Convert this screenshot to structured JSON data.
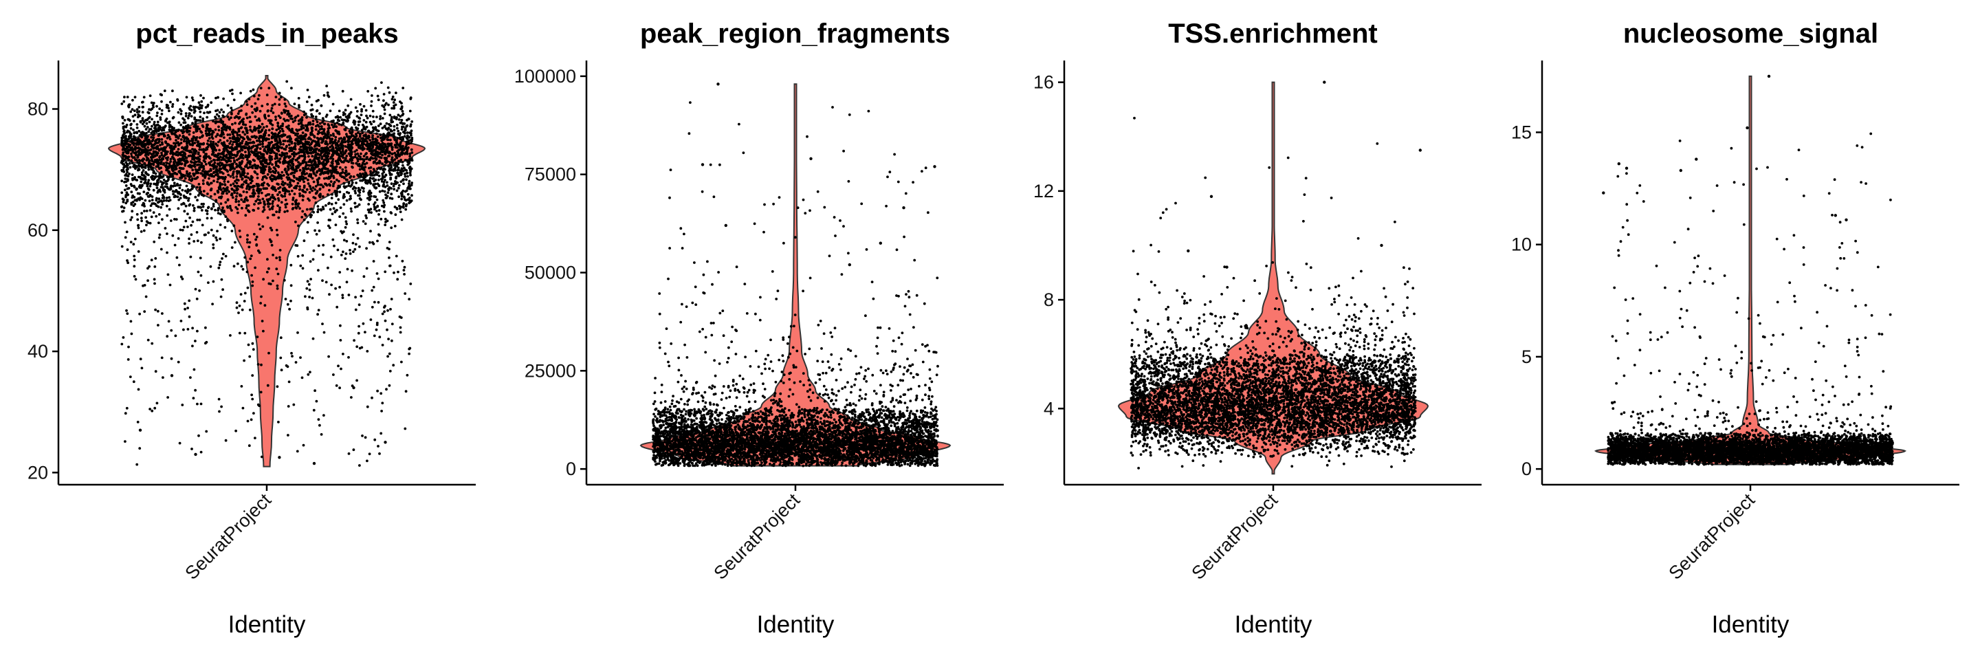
{
  "chart_data": [
    {
      "type": "violin",
      "title": "pct_reads_in_peaks",
      "xlabel": "Identity",
      "categories": [
        "SeuratProject"
      ],
      "ylim": [
        18,
        88
      ],
      "yticks": [
        20,
        40,
        60,
        80
      ],
      "ytick_labels": [
        "20",
        "40",
        "60",
        "80"
      ],
      "grid": false,
      "colors": {
        "fill": "#f8766d",
        "outline": "#333333",
        "points": "#000000"
      },
      "distribution": {
        "min": 21,
        "max": 85.5,
        "density": [
          [
            21,
            0.02
          ],
          [
            25,
            0.03
          ],
          [
            30,
            0.04
          ],
          [
            35,
            0.05
          ],
          [
            40,
            0.06
          ],
          [
            45,
            0.08
          ],
          [
            50,
            0.1
          ],
          [
            55,
            0.13
          ],
          [
            60,
            0.2
          ],
          [
            64,
            0.3
          ],
          [
            67,
            0.45
          ],
          [
            70,
            0.7
          ],
          [
            72,
            0.92
          ],
          [
            73.5,
            1.0
          ],
          [
            75,
            0.85
          ],
          [
            77,
            0.5
          ],
          [
            79,
            0.25
          ],
          [
            81,
            0.14
          ],
          [
            83,
            0.06
          ],
          [
            85.5,
            0.0
          ]
        ]
      },
      "points": {
        "n": 5000,
        "mode": 73,
        "spread": 4,
        "jitter": 1.0,
        "outliers": [
          [
            0.08,
            22.5
          ],
          [
            -0.45,
            23
          ],
          [
            0.3,
            21.5
          ],
          [
            -0.8,
            27
          ],
          [
            0.75,
            25
          ],
          [
            0.55,
            34
          ],
          [
            -0.6,
            36
          ]
        ]
      }
    },
    {
      "type": "violin",
      "title": "peak_region_fragments",
      "xlabel": "Identity",
      "categories": [
        "SeuratProject"
      ],
      "ylim": [
        -4000,
        104000
      ],
      "yticks": [
        0,
        25000,
        50000,
        75000,
        100000
      ],
      "ytick_labels": [
        "0",
        "25000",
        "50000",
        "75000",
        "100000"
      ],
      "grid": false,
      "colors": {
        "fill": "#f8766d",
        "outline": "#333333",
        "points": "#000000"
      },
      "distribution": {
        "min": 800,
        "max": 98000,
        "density": [
          [
            800,
            0.4
          ],
          [
            3000,
            0.75
          ],
          [
            6000,
            1.0
          ],
          [
            8000,
            0.8
          ],
          [
            10000,
            0.55
          ],
          [
            13000,
            0.35
          ],
          [
            16000,
            0.22
          ],
          [
            20000,
            0.13
          ],
          [
            24000,
            0.08
          ],
          [
            30000,
            0.04
          ],
          [
            40000,
            0.02
          ],
          [
            50000,
            0.012
          ],
          [
            70000,
            0.008
          ],
          [
            98000,
            0.0
          ]
        ]
      },
      "points": {
        "n": 6000,
        "mode": 6500,
        "spread": 3500,
        "jitter": 1.0,
        "outliers": [
          [
            -0.5,
            98000
          ],
          [
            0.1,
            79000
          ],
          [
            -0.6,
            77500
          ],
          [
            0.9,
            77000
          ],
          [
            0.7,
            66500
          ],
          [
            0.55,
            57500
          ],
          [
            -0.45,
            62000
          ],
          [
            0.35,
            52000
          ]
        ]
      }
    },
    {
      "type": "violin",
      "title": "TSS.enrichment",
      "xlabel": "Identity",
      "categories": [
        "SeuratProject"
      ],
      "ylim": [
        1.2,
        16.8
      ],
      "yticks": [
        4,
        8,
        12,
        16
      ],
      "ytick_labels": [
        "4",
        "8",
        "12",
        "16"
      ],
      "grid": false,
      "colors": {
        "fill": "#f8766d",
        "outline": "#333333",
        "points": "#000000"
      },
      "distribution": {
        "min": 1.6,
        "max": 16,
        "density": [
          [
            1.6,
            0.0
          ],
          [
            2.2,
            0.05
          ],
          [
            2.8,
            0.25
          ],
          [
            3.2,
            0.6
          ],
          [
            3.7,
            0.95
          ],
          [
            4.1,
            1.0
          ],
          [
            4.6,
            0.8
          ],
          [
            5.2,
            0.5
          ],
          [
            6,
            0.3
          ],
          [
            6.8,
            0.16
          ],
          [
            7.6,
            0.07
          ],
          [
            8.5,
            0.03
          ],
          [
            9.5,
            0.012
          ],
          [
            11,
            0.006
          ],
          [
            13,
            0.004
          ],
          [
            16,
            0.0
          ]
        ]
      },
      "points": {
        "n": 6000,
        "mode": 4.1,
        "spread": 0.75,
        "jitter": 1.0,
        "outliers": [
          [
            0.33,
            16
          ],
          [
            0.95,
            13.5
          ],
          [
            -0.4,
            11.8
          ],
          [
            0.7,
            10
          ],
          [
            -0.55,
            9.8
          ],
          [
            -0.3,
            9.2
          ]
        ]
      }
    },
    {
      "type": "violin",
      "title": "nucleosome_signal",
      "xlabel": "Identity",
      "categories": [
        "SeuratProject"
      ],
      "ylim": [
        -0.7,
        18.2
      ],
      "yticks": [
        0,
        5,
        10,
        15
      ],
      "ytick_labels": [
        "0",
        "5",
        "10",
        "15"
      ],
      "grid": false,
      "colors": {
        "fill": "#f8766d",
        "outline": "#333333",
        "points": "#000000"
      },
      "distribution": {
        "min": 0.2,
        "max": 17.5,
        "density": [
          [
            0.2,
            0.25
          ],
          [
            0.5,
            0.75
          ],
          [
            0.8,
            1.0
          ],
          [
            1.05,
            0.75
          ],
          [
            1.3,
            0.35
          ],
          [
            1.6,
            0.12
          ],
          [
            2,
            0.05
          ],
          [
            3,
            0.02
          ],
          [
            5,
            0.01
          ],
          [
            10,
            0.005
          ],
          [
            17.5,
            0.0
          ]
        ]
      },
      "points": {
        "n": 6000,
        "mode": 0.85,
        "spread": 0.3,
        "jitter": 1.0,
        "outliers": [
          [
            -0.85,
            13.6
          ],
          [
            -0.8,
            13.4
          ],
          [
            -0.45,
            13.3
          ],
          [
            -0.35,
            13.8
          ],
          [
            0.12,
            17.5
          ],
          [
            0.55,
            11.3
          ],
          [
            0.62,
            11.1
          ],
          [
            -0.02,
            15.2
          ],
          [
            -0.95,
            12.3
          ]
        ]
      }
    }
  ]
}
